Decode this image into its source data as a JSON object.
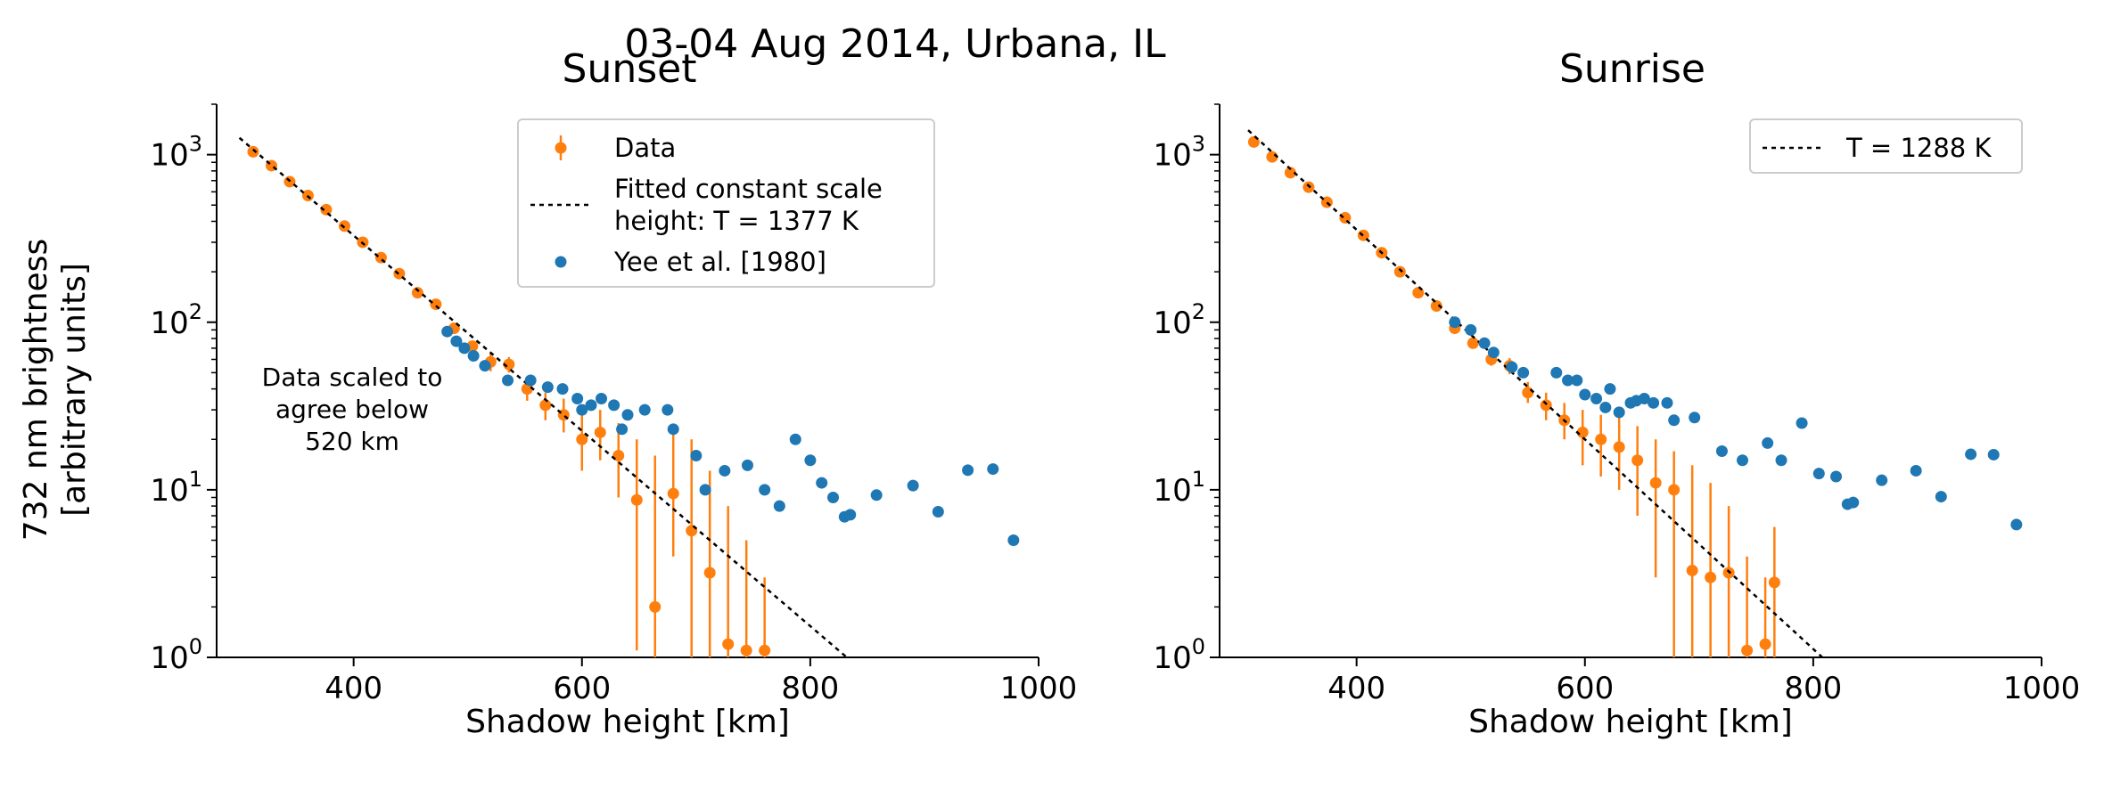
{
  "figure": {
    "suptitle": "03-04 Aug 2014, Urbana, IL",
    "colors": {
      "data": "#ff7f0e",
      "yee": "#1f77b4",
      "fit": "#000000"
    }
  },
  "chart_data": [
    {
      "type": "scatter",
      "title": "Sunset",
      "xlabel": "Shadow height [km]",
      "ylabel": [
        "732 nm brightness",
        "[arbitrary units]"
      ],
      "xlim": [
        280,
        1000
      ],
      "ylim": [
        1,
        2000
      ],
      "yscale": "log",
      "xticks": [
        400,
        600,
        800,
        1000
      ],
      "yticks": [
        {
          "value": 1,
          "base": "10",
          "exp": "0"
        },
        {
          "value": 10,
          "base": "10",
          "exp": "1"
        },
        {
          "value": 100,
          "base": "10",
          "exp": "2"
        },
        {
          "value": 1000,
          "base": "10",
          "exp": "3"
        }
      ],
      "legend_position": "top-right",
      "annotation": [
        "Data scaled to",
        "agree below",
        "520 km"
      ],
      "series": [
        {
          "name": "Data",
          "kind": "errorbar",
          "x": [
            312,
            328,
            344,
            360,
            376,
            392,
            408,
            424,
            440,
            456,
            472,
            488,
            504,
            520,
            536,
            552,
            568,
            584,
            600,
            616,
            632,
            648,
            664,
            680,
            696,
            712,
            728,
            744,
            760
          ],
          "y": [
            1040,
            860,
            690,
            570,
            470,
            375,
            300,
            243,
            195,
            150,
            128,
            92,
            72,
            58,
            56,
            40,
            32,
            28,
            20,
            22,
            16,
            8.7,
            2,
            9.5,
            5.7,
            3.2,
            1.2,
            1.1,
            1.1
          ],
          "ylo": [
            1020,
            845,
            675,
            560,
            462,
            368,
            295,
            238,
            191,
            146,
            123,
            86,
            67,
            51,
            50,
            34,
            26,
            22,
            13,
            15,
            9,
            1.1,
            1,
            4,
            1,
            1,
            1,
            1,
            1
          ],
          "yhi": [
            1060,
            875,
            705,
            580,
            478,
            382,
            305,
            248,
            199,
            154,
            133,
            98,
            77,
            65,
            62,
            46,
            38,
            35,
            28,
            30,
            25,
            20,
            16,
            22,
            20,
            13,
            8,
            5,
            3
          ]
        },
        {
          "name": "Fitted constant scale\nheight: T = 1377 K",
          "kind": "line",
          "x": [
            300,
            832
          ],
          "y": [
            1260,
            1
          ]
        },
        {
          "name": "Yee et al. [1980]",
          "kind": "scatter",
          "x": [
            482,
            490,
            497,
            505,
            515,
            535,
            555,
            570,
            583,
            596,
            600,
            608,
            617,
            628,
            635,
            640,
            655,
            675,
            680,
            700,
            708,
            725,
            745,
            760,
            773,
            787,
            800,
            810,
            820,
            830,
            835,
            858,
            890,
            912,
            938,
            960,
            978
          ],
          "y": [
            88,
            77,
            70,
            63,
            55,
            45,
            45,
            41,
            40,
            35,
            30,
            32,
            35,
            32,
            23,
            28,
            30,
            30,
            23,
            16,
            10,
            13,
            14,
            10,
            8,
            20,
            15,
            11,
            9,
            6.9,
            7.1,
            9.3,
            10.6,
            7.4,
            13.1,
            13.3,
            5.0
          ]
        }
      ]
    },
    {
      "type": "scatter",
      "title": "Sunrise",
      "xlabel": "Shadow height [km]",
      "ylabel": [],
      "xlim": [
        280,
        1000
      ],
      "ylim": [
        1,
        2000
      ],
      "yscale": "log",
      "xticks": [
        400,
        600,
        800,
        1000
      ],
      "yticks": [
        {
          "value": 1,
          "base": "10",
          "exp": "0"
        },
        {
          "value": 10,
          "base": "10",
          "exp": "1"
        },
        {
          "value": 100,
          "base": "10",
          "exp": "2"
        },
        {
          "value": 1000,
          "base": "10",
          "exp": "3"
        }
      ],
      "legend_position": "top-right",
      "annotation": [],
      "series": [
        {
          "name": "Data",
          "kind": "errorbar",
          "legend": false,
          "x": [
            310,
            326,
            342,
            358,
            374,
            390,
            406,
            422,
            438,
            454,
            470,
            486,
            502,
            518,
            534,
            550,
            566,
            582,
            598,
            614,
            630,
            646,
            662,
            678,
            694,
            710,
            726,
            742,
            758,
            766
          ],
          "y": [
            1190,
            970,
            780,
            640,
            520,
            420,
            330,
            260,
            200,
            150,
            125,
            92,
            75,
            60,
            55,
            38,
            32,
            26,
            22,
            20,
            18,
            15,
            11,
            10,
            3.3,
            3.0,
            3.2,
            1.1,
            1.2,
            2.8
          ],
          "ylo": [
            1170,
            955,
            768,
            630,
            512,
            412,
            324,
            255,
            196,
            146,
            120,
            87,
            70,
            55,
            49,
            33,
            26,
            20,
            14,
            12,
            10,
            7,
            3,
            1,
            1,
            1,
            1,
            1,
            1,
            1
          ],
          "yhi": [
            1210,
            985,
            792,
            650,
            528,
            428,
            336,
            265,
            204,
            154,
            130,
            97,
            80,
            66,
            61,
            44,
            38,
            33,
            30,
            28,
            27,
            24,
            20,
            17,
            14,
            11,
            8,
            4,
            3,
            6
          ]
        },
        {
          "name": "T = 1288 K",
          "kind": "line",
          "x": [
            305,
            808
          ],
          "y": [
            1400,
            1
          ]
        },
        {
          "name": "Yee et al. [1980]",
          "kind": "scatter",
          "legend": false,
          "x": [
            486,
            500,
            512,
            520,
            536,
            546,
            575,
            585,
            593,
            600,
            610,
            618,
            622,
            630,
            640,
            645,
            652,
            660,
            672,
            678,
            696,
            720,
            738,
            760,
            772,
            790,
            805,
            820,
            830,
            835,
            860,
            890,
            912,
            938,
            958,
            978
          ],
          "y": [
            100,
            90,
            75,
            66,
            54,
            50,
            50,
            45,
            45,
            37,
            35,
            31,
            40,
            29,
            33,
            34,
            35,
            33,
            33,
            26,
            27,
            17,
            15,
            19,
            15,
            25,
            12.5,
            12,
            8.2,
            8.4,
            11.4,
            13.0,
            9.1,
            16.3,
            16.2,
            6.2
          ]
        }
      ]
    }
  ]
}
